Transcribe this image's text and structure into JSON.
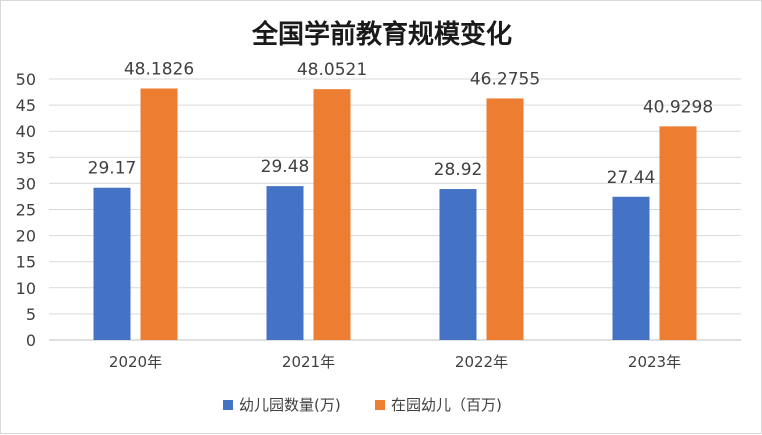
{
  "chart_data": {
    "type": "bar",
    "title": "全国学前教育规模变化",
    "categories": [
      "2020年",
      "2021年",
      "2022年",
      "2023年"
    ],
    "series": [
      {
        "name": "幼儿园数量(万)",
        "color": "#4472c4",
        "values": [
          29.17,
          29.48,
          28.92,
          27.44
        ],
        "labels": [
          "29.17",
          "29.48",
          "28.92",
          "27.44"
        ]
      },
      {
        "name": "在园幼儿（百万)",
        "color": "#ed7d31",
        "values": [
          48.1826,
          48.0521,
          46.2755,
          40.9298
        ],
        "labels": [
          "48.1826",
          "48.0521",
          "46.2755",
          "40.9298"
        ]
      }
    ],
    "ylim": [
      0,
      50
    ],
    "yticks": [
      "0",
      "5",
      "10",
      "15",
      "20",
      "25",
      "30",
      "35",
      "40",
      "45",
      "50"
    ],
    "grid": true,
    "legend_position": "bottom"
  }
}
